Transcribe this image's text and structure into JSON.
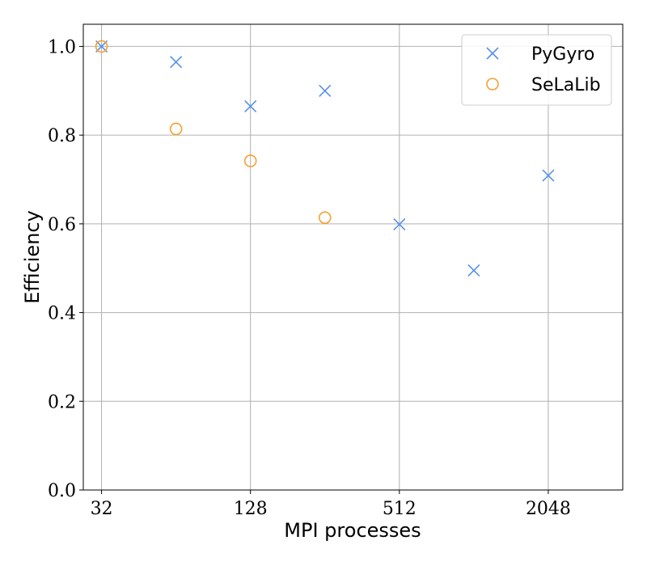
{
  "chart_data": {
    "type": "scatter",
    "title": "",
    "xlabel": "MPI processes",
    "ylabel": "Efficiency",
    "x_scale": "log2",
    "xlim": [
      27,
      4096
    ],
    "ylim": [
      0.0,
      1.05
    ],
    "x_ticks": [
      32,
      128,
      512,
      2048
    ],
    "x_tick_labels": [
      "32",
      "128",
      "512",
      "2048"
    ],
    "y_ticks": [
      0.0,
      0.2,
      0.4,
      0.6,
      0.8,
      1.0
    ],
    "y_tick_labels": [
      "0.0",
      "0.2",
      "0.4",
      "0.6",
      "0.8",
      "1.0"
    ],
    "grid": true,
    "legend_position": "top-right",
    "series": [
      {
        "name": "PyGyro",
        "marker": "x",
        "color": "#5591e8",
        "x": [
          32,
          64,
          128,
          256,
          512,
          1024,
          2048
        ],
        "y": [
          1.0,
          0.965,
          0.865,
          0.9,
          0.599,
          0.495,
          0.709
        ]
      },
      {
        "name": "SeLaLib",
        "marker": "o",
        "color": "#f5a030",
        "x": [
          32,
          64,
          128,
          256
        ],
        "y": [
          1.0,
          0.814,
          0.742,
          0.614
        ]
      }
    ]
  }
}
